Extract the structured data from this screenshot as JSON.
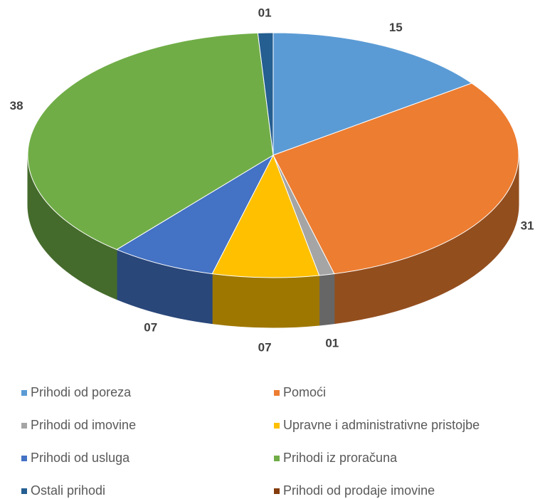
{
  "chart_data": {
    "type": "pie3d",
    "categories": [
      "Prihodi od poreza",
      "Pomoći",
      "Prihodi od imovine",
      "Upravne i administrativne pristojbe",
      "Prihodi od usluga",
      "Prihodi iz proračuna",
      "Ostali prihodi",
      "Prihodi od prodaje imovine"
    ],
    "values": [
      15,
      31,
      1,
      7,
      7,
      38,
      1,
      0
    ],
    "value_labels": [
      "15",
      "31",
      "01",
      "07",
      "07",
      "38",
      "01",
      null
    ],
    "colors": [
      "#5b9bd5",
      "#ed7d31",
      "#a5a5a5",
      "#ffc000",
      "#4472c4",
      "#70ad47",
      "#255e91",
      "#843c0c"
    ],
    "legend": "bottom"
  }
}
